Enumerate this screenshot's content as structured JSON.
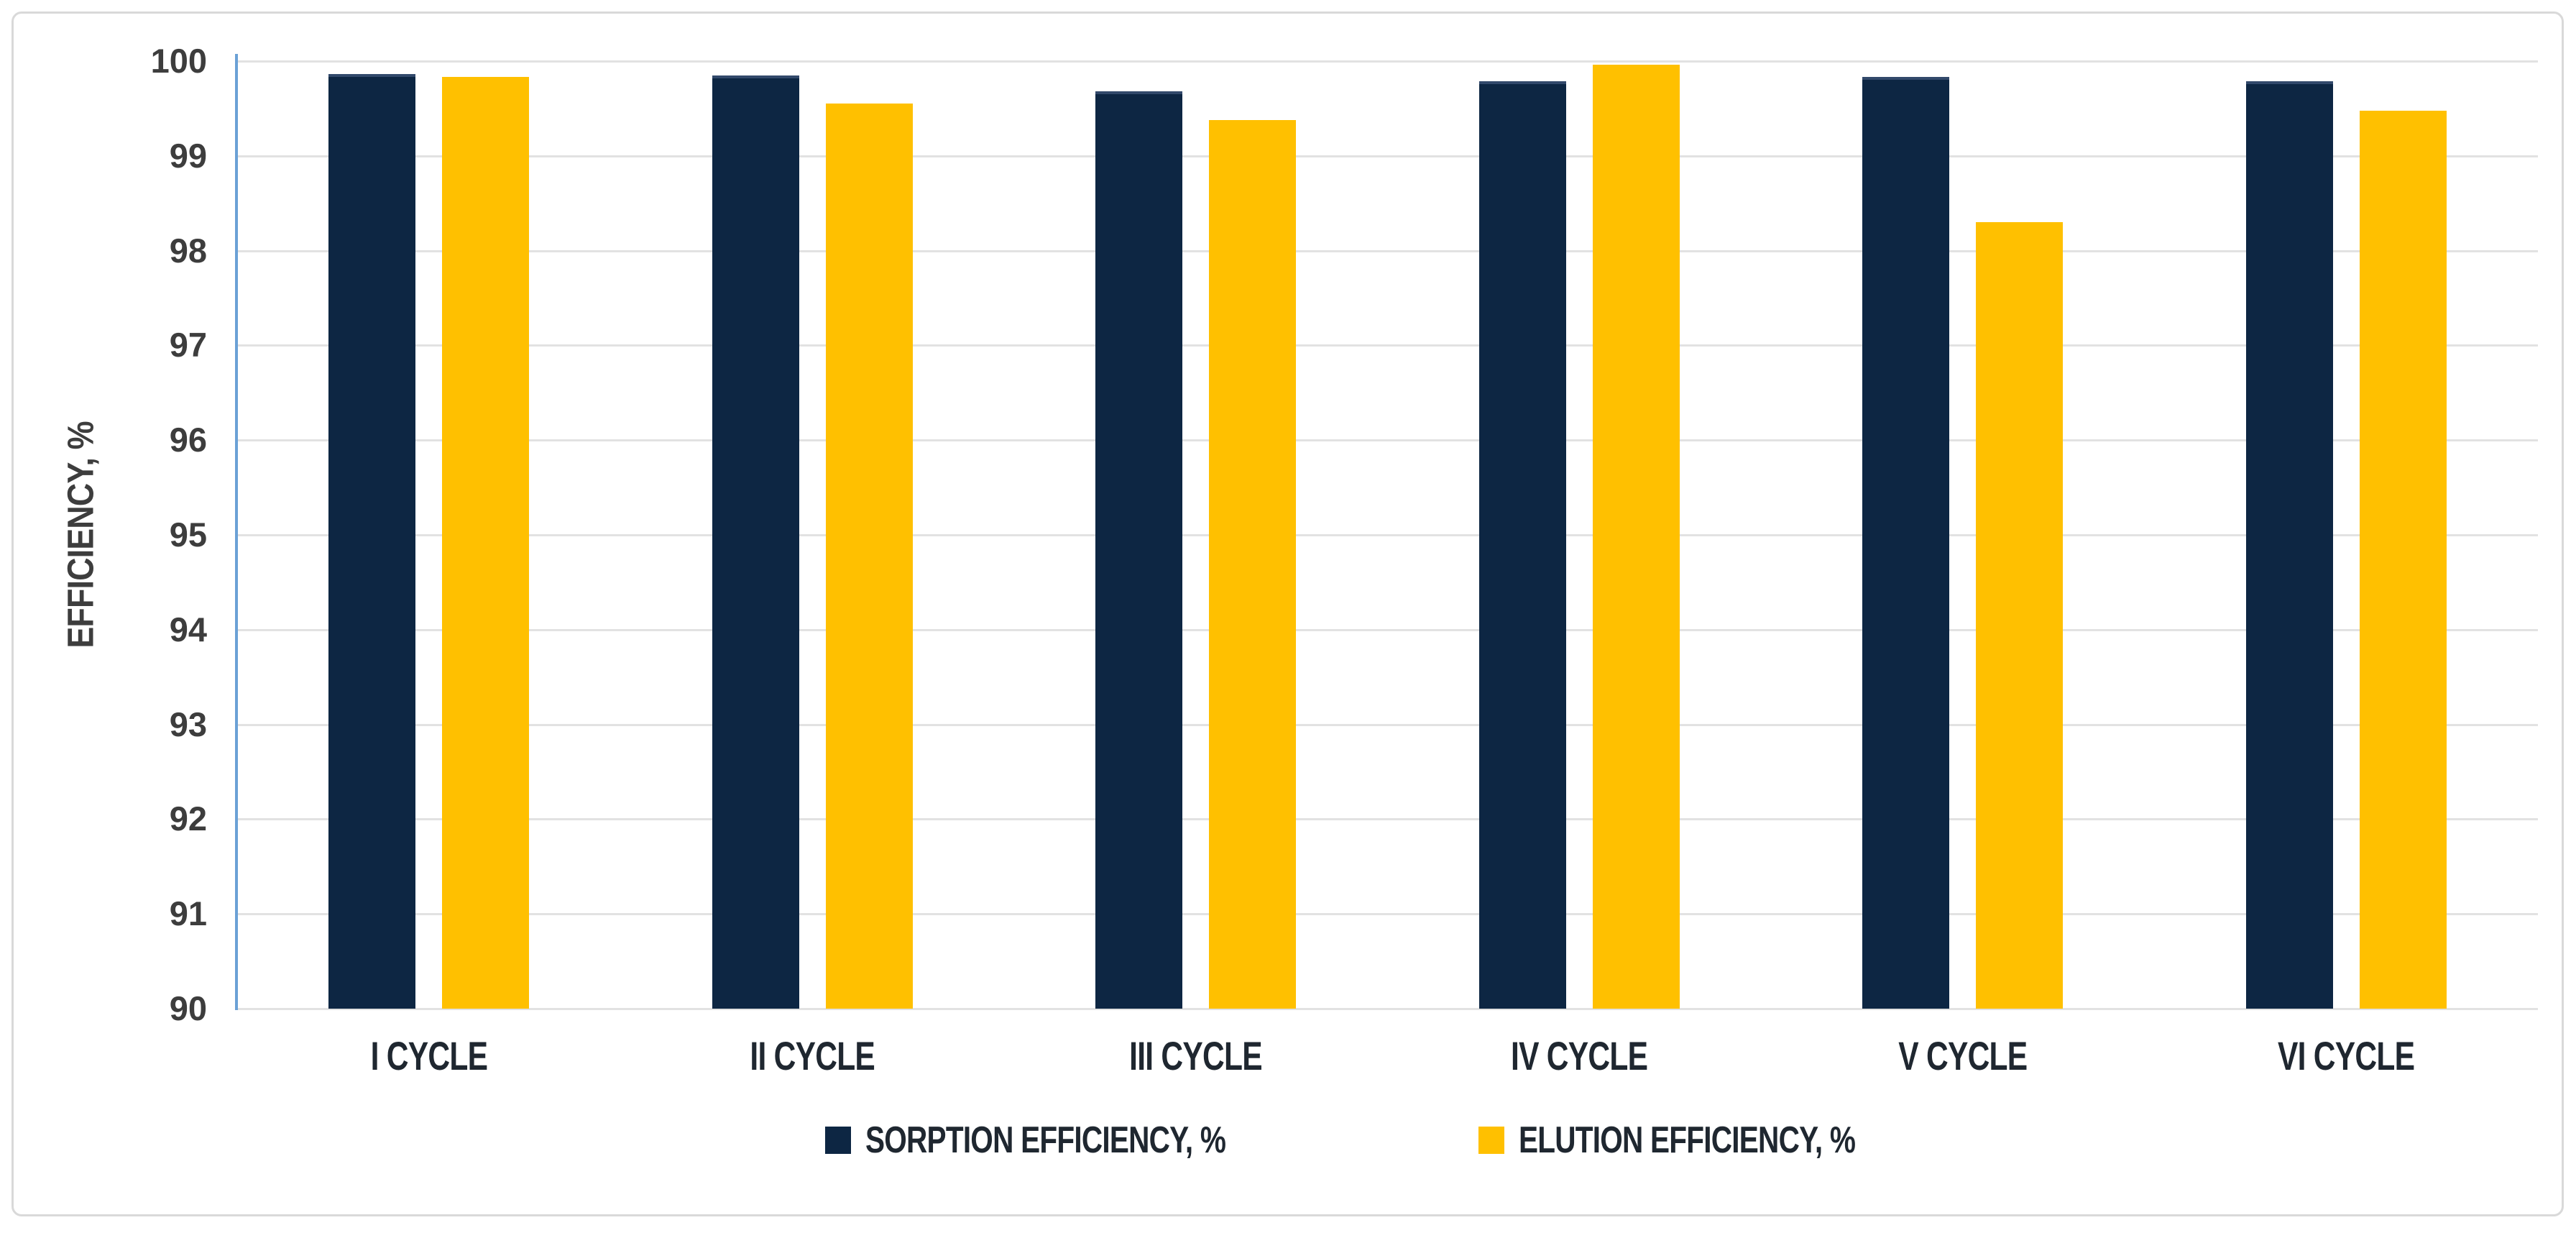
{
  "chart_data": {
    "type": "bar",
    "title": "",
    "categories": [
      "I CYCLE",
      "II CYCLE",
      "III CYCLE",
      "IV CYCLE",
      "V CYCLE",
      "VI CYCLE"
    ],
    "series": [
      {
        "name": "SORPTION EFFICIENCY, %",
        "color": "#0d2643",
        "values": [
          99.86,
          99.85,
          99.68,
          99.79,
          99.83,
          99.79
        ]
      },
      {
        "name": "ELUTION EFFICIENCY, %",
        "color": "#ffc000",
        "values": [
          99.83,
          99.55,
          99.38,
          99.96,
          98.3,
          99.48
        ]
      }
    ],
    "xlabel": "",
    "ylabel": "EFFICIENCY, %",
    "ylim": [
      90,
      100
    ],
    "y_tick_step": 1,
    "y_ticks": [
      "100",
      "99",
      "98",
      "97",
      "96",
      "95",
      "94",
      "93",
      "92",
      "91",
      "90"
    ],
    "grid": "horizontal",
    "legend_position": "bottom"
  },
  "colors": {
    "background": "#ffffff",
    "frame_border": "#d9d9d9",
    "gridline": "#e2e2e2",
    "y_axis_line": "#6ba1d6",
    "tick_text": "#3d3d3d",
    "category_text": "#1f2730",
    "sorption_bar": "#0d2643",
    "sorption_bar_top_edge": "#32496b",
    "elution_bar": "#ffc000"
  }
}
